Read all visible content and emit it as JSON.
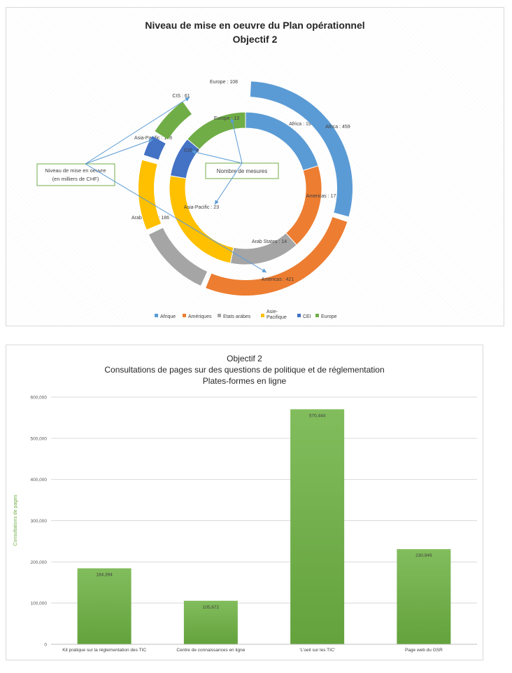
{
  "chart_data": [
    {
      "type": "donut",
      "title_lines": [
        "Niveau de mise en oeuvre du Plan opérationnel",
        "Objectif 2"
      ],
      "inner_ring": {
        "series_name": "Nombre de mesures",
        "slices": [
          {
            "label": "Africa : 19",
            "value": 19,
            "color": "#5b9bd5"
          },
          {
            "label": "Americas : 17",
            "value": 17,
            "color": "#ed7d31"
          },
          {
            "label": "Arab States : 14",
            "value": 14,
            "color": "#a5a5a5"
          },
          {
            "label": "Asia-Pacific : 23",
            "value": 23,
            "color": "#ffc000"
          },
          {
            "label": "CIS : 8",
            "value": 8,
            "color": "#4472c4"
          },
          {
            "label": "Europe : 13",
            "value": 13,
            "color": "#70ad47"
          }
        ]
      },
      "outer_ring": {
        "series_name": "Niveau de mise en oeuvre (en milliers de CHF)",
        "slices": [
          {
            "label": "Africa : 459",
            "value": 459,
            "color": "#5b9bd5"
          },
          {
            "label": "Americas : 421",
            "value": 421,
            "color": "#ed7d31"
          },
          {
            "label": "Arab States : 186",
            "value": 186,
            "color": "#a5a5a5"
          },
          {
            "label": "Asia-Pacific : 178",
            "value": 178,
            "color": "#ffc000"
          },
          {
            "label": "CIS : 61",
            "value": 61,
            "color": "#4472c4"
          },
          {
            "label": "Europe : 108",
            "value": 108,
            "color": "#70ad47"
          }
        ]
      },
      "callouts": [
        {
          "lines": [
            "Niveau de mise en oeuvre",
            "(en milliers de CHF)"
          ]
        },
        {
          "lines": [
            "Nombre de mesures"
          ]
        }
      ],
      "legend": {
        "placement": "bottom",
        "entries": [
          {
            "lines": [
              "Afrique"
            ],
            "color": "#5b9bd5"
          },
          {
            "lines": [
              "Amériques"
            ],
            "color": "#ed7d31"
          },
          {
            "lines": [
              "Etats arabes"
            ],
            "color": "#a5a5a5"
          },
          {
            "lines": [
              "Asie-",
              "Pacifique"
            ],
            "color": "#ffc000"
          },
          {
            "lines": [
              "CEI"
            ],
            "color": "#4472c4"
          },
          {
            "lines": [
              "Europe"
            ],
            "color": "#70ad47"
          }
        ]
      }
    },
    {
      "type": "bar",
      "title_lines": [
        "Objectif 2",
        "Consultations de pages sur des questions de politique et de réglementation",
        "Plates-formes en ligne"
      ],
      "categories": [
        "Kit pratique sur la réglementation des TIC",
        "Centre de connaissances en ligne",
        "'L'oeil sur les TIC'",
        "Page web du GSR"
      ],
      "values": [
        184394,
        105672,
        570444,
        230949
      ],
      "value_labels": [
        "184,394",
        "105,672",
        "570,444",
        "230,949"
      ],
      "ylabel": "Consultations de pages",
      "ylim": [
        0,
        600000
      ],
      "yticks": [
        0,
        100000,
        200000,
        300000,
        400000,
        500000,
        600000
      ],
      "ytick_labels": [
        "0",
        "100,000",
        "200,000",
        "300,000",
        "400,000",
        "500,000",
        "600,000"
      ],
      "grid": true,
      "bar_color": "#70ad47"
    }
  ]
}
